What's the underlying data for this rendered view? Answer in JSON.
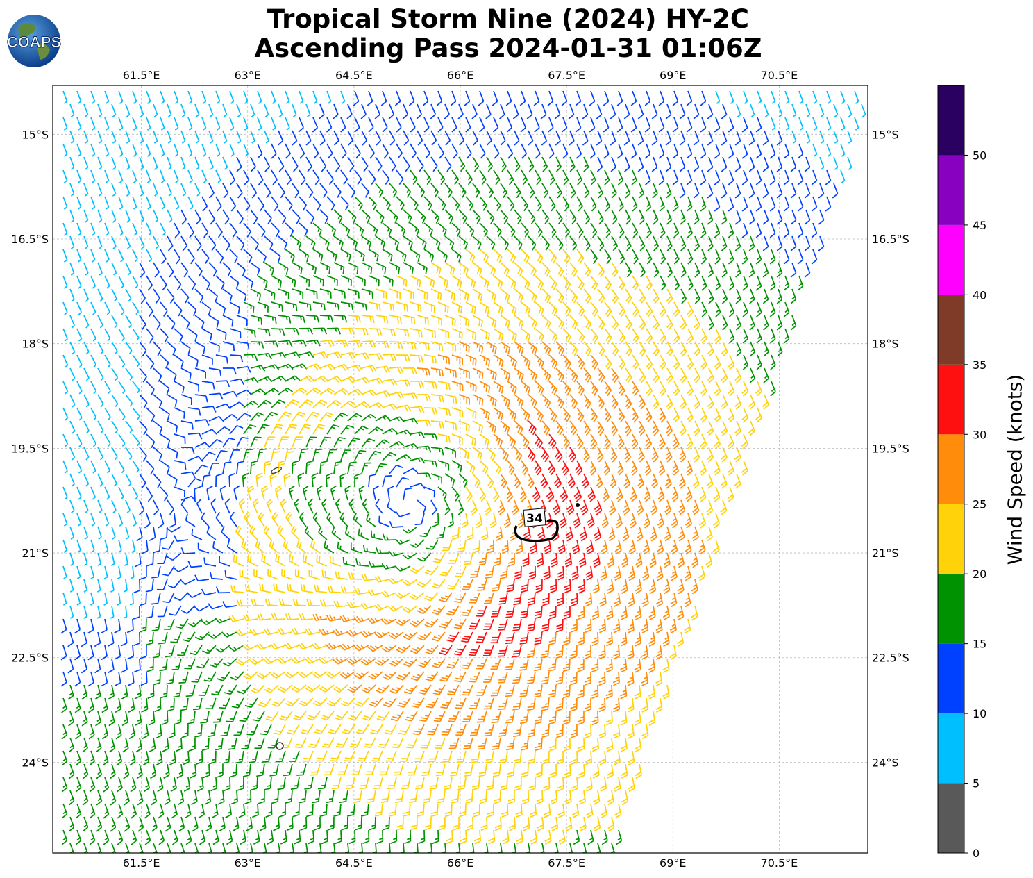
{
  "title": {
    "line1": "Tropical Storm Nine (2024) HY-2C",
    "line2": "Ascending Pass 2024-01-31 01:06Z"
  },
  "logo": {
    "text": "COAPS"
  },
  "map": {
    "lon_range": [
      60.25,
      71.75
    ],
    "lat_range": [
      -25.3,
      -14.3
    ],
    "lon_ticks": [
      "61.5°E",
      "63°E",
      "64.5°E",
      "66°E",
      "67.5°E",
      "69°E",
      "70.5°E"
    ],
    "lon_tick_values": [
      61.5,
      63,
      64.5,
      66,
      67.5,
      69,
      70.5
    ],
    "lat_ticks": [
      "15°S",
      "16.5°S",
      "18°S",
      "19.5°S",
      "21°S",
      "22.5°S",
      "24°S"
    ],
    "lat_tick_values": [
      -15,
      -16.5,
      -18,
      -19.5,
      -21,
      -22.5,
      -24
    ],
    "gridlines": true,
    "storm_center": {
      "lon": 65.3,
      "lat": -20.3
    },
    "contour_label": "34",
    "contour_label_pos": {
      "lon": 67.3,
      "lat": -20.4
    }
  },
  "colorbar": {
    "label": "Wind Speed (knots)",
    "ticks": [
      "0",
      "5",
      "10",
      "15",
      "20",
      "25",
      "30",
      "35",
      "40",
      "45",
      "50"
    ],
    "bins": [
      {
        "min": 0,
        "max": 5,
        "color": "#595959"
      },
      {
        "min": 5,
        "max": 10,
        "color": "#00bfff"
      },
      {
        "min": 10,
        "max": 15,
        "color": "#0040ff"
      },
      {
        "min": 15,
        "max": 20,
        "color": "#009200"
      },
      {
        "min": 20,
        "max": 25,
        "color": "#ffd20a"
      },
      {
        "min": 25,
        "max": 30,
        "color": "#ff8c0a"
      },
      {
        "min": 30,
        "max": 35,
        "color": "#ff1010"
      },
      {
        "min": 35,
        "max": 40,
        "color": "#7f3a28"
      },
      {
        "min": 40,
        "max": 45,
        "color": "#ff00ff"
      },
      {
        "min": 45,
        "max": 50,
        "color": "#8800c0"
      },
      {
        "min": 50,
        "max": 55,
        "color": "#2a0060"
      }
    ]
  }
}
